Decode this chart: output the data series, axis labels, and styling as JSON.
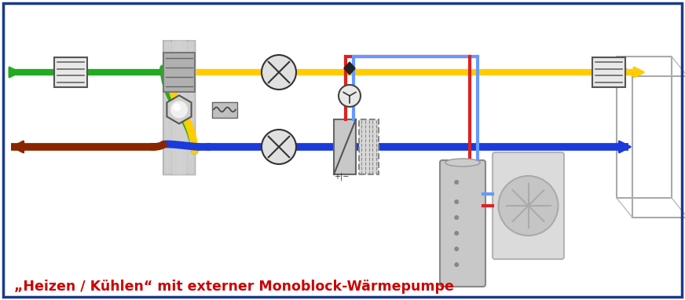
{
  "title": "„Heizen / Kühlen“ mit externer Monoblock-Wärmepumpe",
  "title_color": "#cc0000",
  "title_fontsize": 12.5,
  "bg_color": "#ffffff",
  "border_color": "#1a3a8c",
  "border_linewidth": 3,
  "blue_color": "#1a3adc",
  "brown_color": "#8b2500",
  "green_color": "#22aa22",
  "yellow_color": "#ffcc00",
  "red_pipe": "#dd2222",
  "blue_pipe": "#6699ff",
  "grey_device": "#aaaaaa",
  "grey_dark": "#888888",
  "grey_light": "#cccccc",
  "grey_mid": "#b0b0b0"
}
